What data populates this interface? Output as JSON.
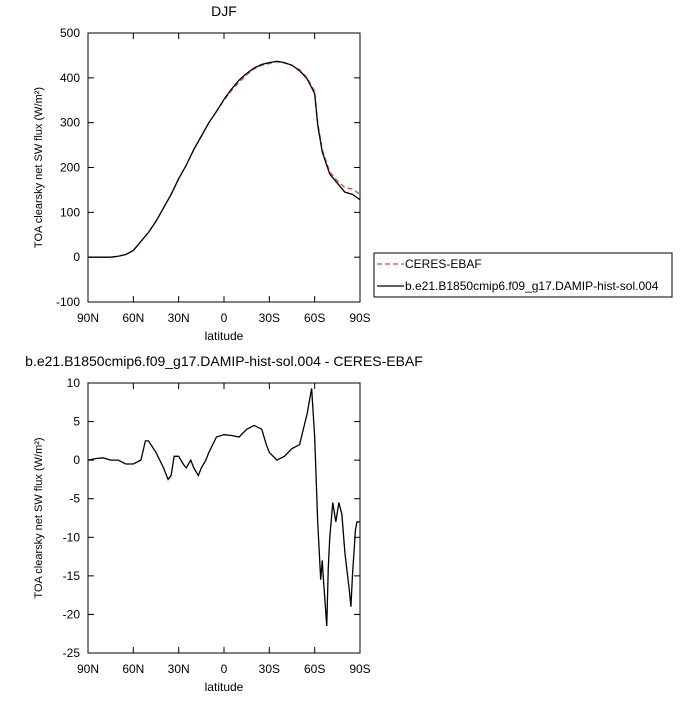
{
  "chart_data": [
    {
      "type": "line",
      "title": "DJF",
      "xlabel": "latitude",
      "ylabel": "TOA clearsky net SW flux (W/m²)",
      "x": [
        90,
        85,
        80,
        75,
        70,
        65,
        60,
        55,
        50,
        45,
        40,
        35,
        30,
        25,
        20,
        15,
        10,
        5,
        0,
        -5,
        -10,
        -15,
        -20,
        -25,
        -30,
        -35,
        -40,
        -45,
        -50,
        -55,
        -60,
        -62,
        -65,
        -70,
        -75,
        -80,
        -85,
        -90
      ],
      "xlim": [
        90,
        -90
      ],
      "xticks": [
        {
          "value": 90,
          "label": "90N"
        },
        {
          "value": 60,
          "label": "60N"
        },
        {
          "value": 30,
          "label": "30N"
        },
        0,
        {
          "value": -30,
          "label": "30S"
        },
        {
          "value": -60,
          "label": "60S"
        },
        {
          "value": -90,
          "label": "90S"
        }
      ],
      "ylim": [
        -100,
        500
      ],
      "yticks": [
        -100,
        0,
        100,
        200,
        300,
        400,
        500
      ],
      "legend": "right",
      "series": [
        {
          "name": "CERES-EBAF",
          "color": "#e8413a",
          "line_style": "dashed",
          "values": [
            0,
            0,
            0,
            0,
            2,
            6,
            15,
            35,
            55,
            80,
            110,
            140,
            175,
            205,
            240,
            270,
            300,
            325,
            350,
            372,
            390,
            407,
            420,
            428,
            432,
            436,
            433,
            428,
            418,
            400,
            370,
            300,
            240,
            190,
            170,
            155,
            152,
            140
          ]
        },
        {
          "name": "b.e21.B1850cmip6.f09_g17.DAMIP-hist-sol.004",
          "color": "#000000",
          "line_style": "solid",
          "values": [
            0,
            0,
            0,
            0,
            2,
            6,
            15,
            35,
            55,
            80,
            110,
            140,
            175,
            205,
            240,
            270,
            300,
            325,
            352,
            375,
            395,
            410,
            422,
            430,
            434,
            437,
            434,
            428,
            416,
            398,
            365,
            295,
            235,
            185,
            165,
            145,
            140,
            128
          ]
        }
      ]
    },
    {
      "type": "line",
      "title": "b.e21.B1850cmip6.f09_g17.DAMIP-hist-sol.004 - CERES-EBAF",
      "xlabel": "latitude",
      "ylabel": "TOA clearsky net SW flux (W/m²)",
      "x": [
        90,
        85,
        80,
        75,
        70,
        65,
        60,
        55,
        52,
        50,
        45,
        40,
        37,
        35,
        33,
        30,
        27,
        25,
        22,
        20,
        17,
        15,
        12,
        10,
        5,
        0,
        -5,
        -10,
        -15,
        -20,
        -25,
        -28,
        -30,
        -35,
        -40,
        -45,
        -50,
        -55,
        -58,
        -60,
        -62,
        -64,
        -65,
        -66,
        -68,
        -69,
        -70,
        -72,
        -74,
        -76,
        -78,
        -80,
        -83,
        -84,
        -85,
        -87,
        -88,
        -90
      ],
      "xlim": [
        90,
        -90
      ],
      "xticks": [
        {
          "value": 90,
          "label": "90N"
        },
        {
          "value": 60,
          "label": "60N"
        },
        {
          "value": 30,
          "label": "30N"
        },
        0,
        {
          "value": -30,
          "label": "30S"
        },
        {
          "value": -60,
          "label": "60S"
        },
        {
          "value": -90,
          "label": "90S"
        }
      ],
      "ylim": [
        -25,
        10
      ],
      "yticks": [
        -25,
        -20,
        -15,
        -10,
        -5,
        0,
        5,
        10
      ],
      "series": [
        {
          "color": "#000000",
          "line_style": "solid",
          "values": [
            0,
            0.2,
            0.3,
            0,
            0,
            -0.5,
            -0.5,
            0,
            2.5,
            2.5,
            1,
            -1,
            -2.5,
            -2,
            0.5,
            0.5,
            -0.5,
            -1,
            0,
            -1,
            -2,
            -1,
            0,
            1,
            3,
            3.3,
            3.2,
            3,
            4,
            4.5,
            4,
            2,
            1,
            0,
            0.5,
            1.5,
            2,
            6,
            9.3,
            3,
            -8,
            -15.5,
            -13,
            -16,
            -21.5,
            -14,
            -10,
            -5.5,
            -8,
            -5.5,
            -7,
            -12,
            -17,
            -19,
            -15,
            -9,
            -8,
            -8
          ]
        }
      ]
    }
  ]
}
